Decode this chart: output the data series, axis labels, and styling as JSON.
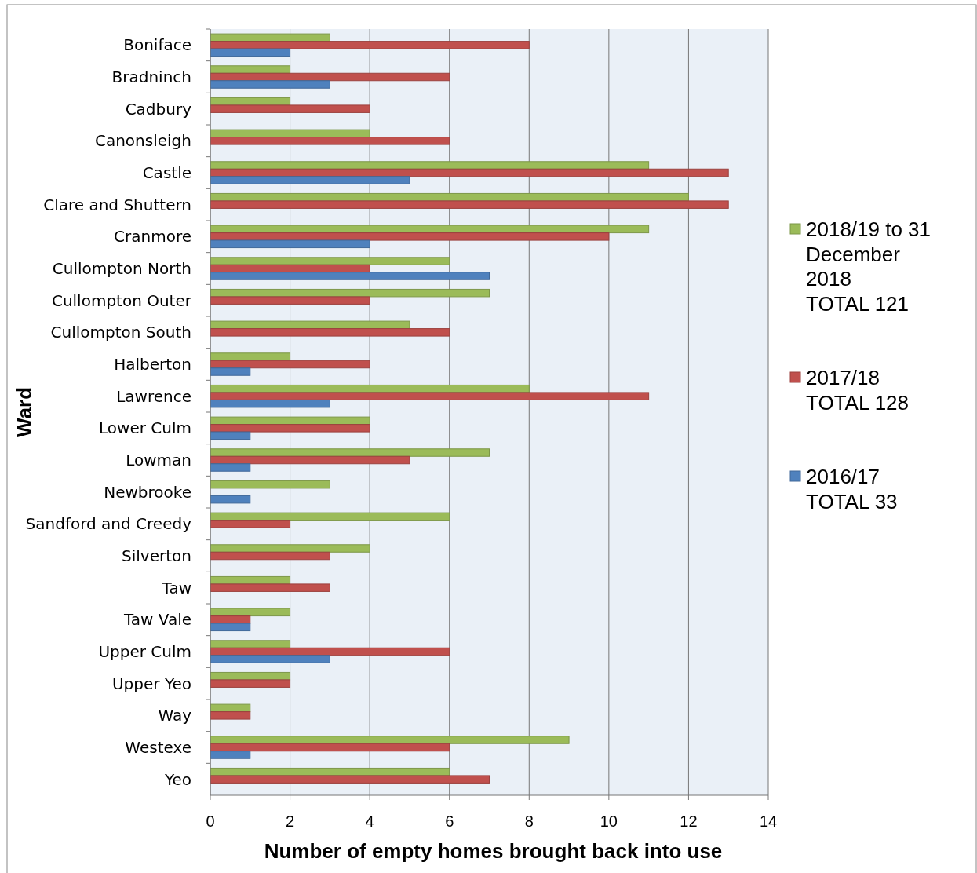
{
  "chart_data": {
    "type": "bar",
    "orientation": "horizontal",
    "xlabel": "Number of empty homes brought back into use",
    "ylabel": "Ward",
    "categories": [
      "Boniface",
      "Bradninch",
      "Cadbury",
      "Canonsleigh",
      "Castle",
      "Clare and Shuttern",
      "Cranmore",
      "Cullompton North",
      "Cullompton Outer",
      "Cullompton South",
      "Halberton",
      "Lawrence",
      "Lower Culm",
      "Lowman",
      "Newbrooke",
      "Sandford and Creedy",
      "Silverton",
      "Taw",
      "Taw Vale",
      "Upper Culm",
      "Upper Yeo",
      "Way",
      "Westexe",
      "Yeo"
    ],
    "series": [
      {
        "name": "2018/19 to 31\nDecember\n2018\nTOTAL 121",
        "color": "#9bbb59",
        "values": [
          3,
          2,
          2,
          4,
          11,
          12,
          11,
          6,
          7,
          5,
          2,
          8,
          4,
          7,
          3,
          6,
          4,
          2,
          2,
          2,
          2,
          1,
          9,
          6
        ]
      },
      {
        "name": "2017/18\nTOTAL 128",
        "color": "#c0504d",
        "values": [
          8,
          6,
          4,
          6,
          13,
          13,
          10,
          4,
          4,
          6,
          4,
          11,
          4,
          5,
          0,
          2,
          3,
          3,
          1,
          6,
          2,
          1,
          6,
          7
        ]
      },
      {
        "name": "2016/17\nTOTAL 33",
        "color": "#4f81bd",
        "values": [
          2,
          3,
          0,
          0,
          5,
          0,
          4,
          7,
          0,
          0,
          1,
          3,
          1,
          1,
          1,
          0,
          0,
          0,
          1,
          3,
          0,
          0,
          1,
          0
        ]
      }
    ],
    "xlim": [
      0,
      14
    ],
    "xticks": [
      0,
      2,
      4,
      6,
      8,
      10,
      12,
      14
    ],
    "grid": "x",
    "legend": "right"
  }
}
